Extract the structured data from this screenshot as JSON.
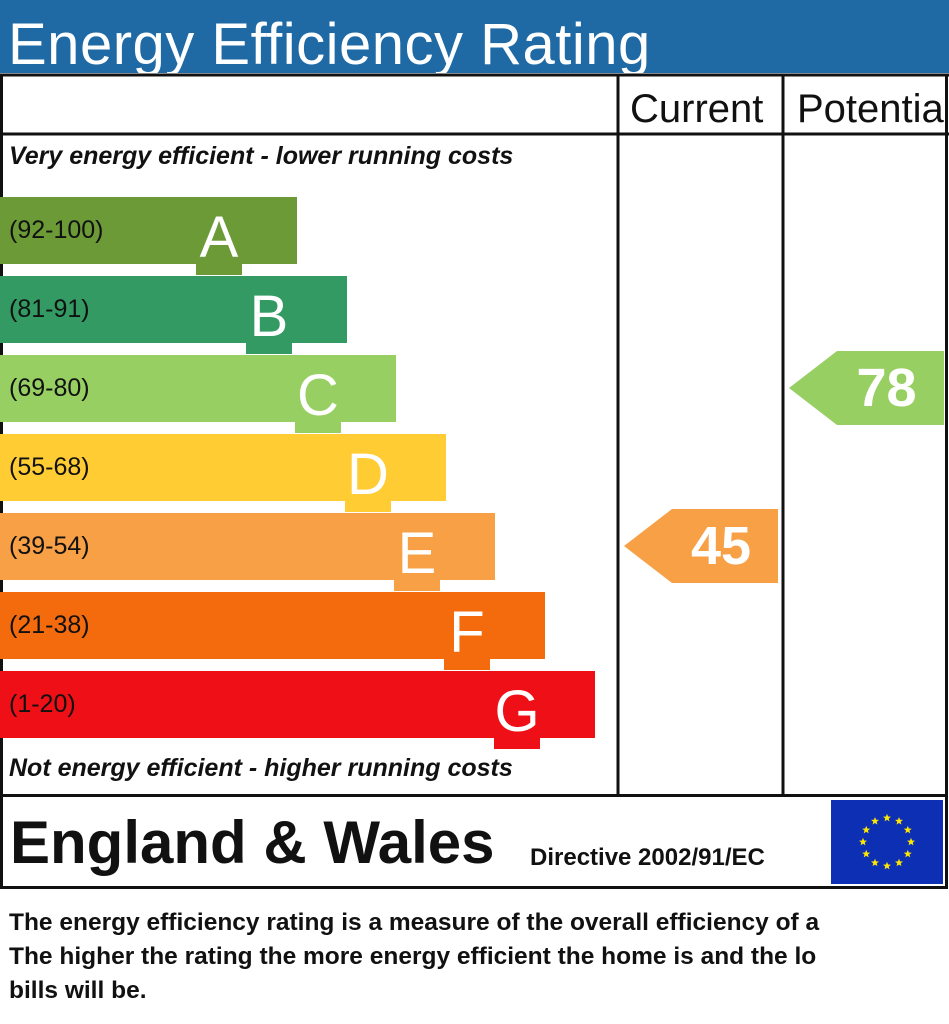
{
  "title": "Energy Efficiency Rating",
  "headers": {
    "current": "Current",
    "potential": "Potentia"
  },
  "top_label": "Very energy efficient - lower running costs",
  "bottom_label": "Not energy efficient - higher running costs",
  "chart_data": {
    "type": "bar",
    "categories": [
      "A",
      "B",
      "C",
      "D",
      "E",
      "F",
      "G"
    ],
    "bands": [
      {
        "letter": "A",
        "range": "(92-100)",
        "color": "#6b9a36"
      },
      {
        "letter": "B",
        "range": "(81-91)",
        "color": "#329a62"
      },
      {
        "letter": "C",
        "range": "(69-80)",
        "color": "#97cf63"
      },
      {
        "letter": "D",
        "range": "(55-68)",
        "color": "#ffcc33"
      },
      {
        "letter": "E",
        "range": "(39-54)",
        "color": "#f7a045"
      },
      {
        "letter": "F",
        "range": "(21-38)",
        "color": "#f46b0d"
      },
      {
        "letter": "G",
        "range": "(1-20)",
        "color": "#ef0f16"
      }
    ],
    "current": {
      "value": 45,
      "band": "E",
      "color": "#f7a045"
    },
    "potential": {
      "value": 78,
      "band": "C",
      "color": "#97cf63"
    }
  },
  "footer": {
    "region": "England & Wales",
    "directive": "Directive 2002/91/EC",
    "flag_icon": "eu-flag-icon",
    "flag_color": "#0c2fb4",
    "star_color": "#ffe600"
  },
  "description": {
    "line1": "The energy efficiency rating is a measure of the overall efficiency of a",
    "line2": "The higher the rating the more energy efficient the home is and the lo",
    "line3": "bills will be."
  }
}
